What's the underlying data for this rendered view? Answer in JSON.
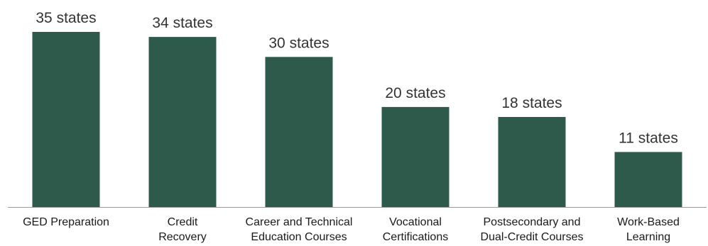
{
  "chart_data": {
    "type": "bar",
    "categories": [
      [
        "GED Preparation"
      ],
      [
        "Credit",
        "Recovery"
      ],
      [
        "Career and Technical",
        "Education Courses"
      ],
      [
        "Vocational",
        "Certifications"
      ],
      [
        "Postsecondary and",
        "Dual-Credit Courses"
      ],
      [
        "Work-Based",
        "Learning"
      ]
    ],
    "values": [
      35,
      34,
      30,
      20,
      18,
      11
    ],
    "data_labels": [
      "35 states",
      "34 states",
      "30 states",
      "20 states",
      "18 states",
      "11 states"
    ],
    "title": "",
    "xlabel": "",
    "ylabel": "",
    "ylim": [
      0,
      35
    ],
    "grid": false,
    "legend": "none",
    "colors": {
      "bar": "#2e5a4b",
      "axis": "#9a9a9a"
    }
  }
}
